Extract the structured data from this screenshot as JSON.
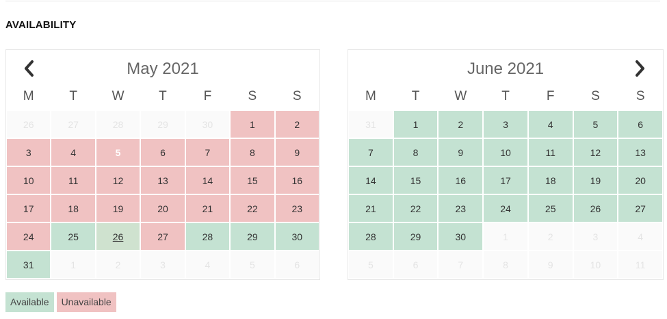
{
  "section": {
    "title": "AVAILABILITY"
  },
  "weekdays": [
    "M",
    "T",
    "W",
    "T",
    "F",
    "S",
    "S"
  ],
  "colors": {
    "available": "#c4e2d2",
    "unavailable": "#f0c2c2",
    "empty": "#fafafa"
  },
  "icons": {
    "prev": "chevron-left-icon",
    "next": "chevron-right-icon"
  },
  "calendars": [
    {
      "title": "May 2021",
      "days": [
        {
          "n": "26",
          "s": "empty"
        },
        {
          "n": "27",
          "s": "empty"
        },
        {
          "n": "28",
          "s": "empty"
        },
        {
          "n": "29",
          "s": "empty"
        },
        {
          "n": "30",
          "s": "empty"
        },
        {
          "n": "1",
          "s": "unavailable"
        },
        {
          "n": "2",
          "s": "unavailable"
        },
        {
          "n": "3",
          "s": "unavailable"
        },
        {
          "n": "4",
          "s": "unavailable"
        },
        {
          "n": "5",
          "s": "unavailable today"
        },
        {
          "n": "6",
          "s": "unavailable"
        },
        {
          "n": "7",
          "s": "unavailable"
        },
        {
          "n": "8",
          "s": "unavailable"
        },
        {
          "n": "9",
          "s": "unavailable"
        },
        {
          "n": "10",
          "s": "unavailable"
        },
        {
          "n": "11",
          "s": "unavailable"
        },
        {
          "n": "12",
          "s": "unavailable"
        },
        {
          "n": "13",
          "s": "unavailable"
        },
        {
          "n": "14",
          "s": "unavailable"
        },
        {
          "n": "15",
          "s": "unavailable"
        },
        {
          "n": "16",
          "s": "unavailable"
        },
        {
          "n": "17",
          "s": "unavailable"
        },
        {
          "n": "18",
          "s": "unavailable"
        },
        {
          "n": "19",
          "s": "unavailable"
        },
        {
          "n": "20",
          "s": "unavailable"
        },
        {
          "n": "21",
          "s": "unavailable"
        },
        {
          "n": "22",
          "s": "unavailable"
        },
        {
          "n": "23",
          "s": "unavailable"
        },
        {
          "n": "24",
          "s": "unavailable"
        },
        {
          "n": "25",
          "s": "available"
        },
        {
          "n": "26",
          "s": "available hover"
        },
        {
          "n": "27",
          "s": "unavailable"
        },
        {
          "n": "28",
          "s": "available"
        },
        {
          "n": "29",
          "s": "available"
        },
        {
          "n": "30",
          "s": "available"
        },
        {
          "n": "31",
          "s": "available"
        },
        {
          "n": "1",
          "s": "empty"
        },
        {
          "n": "2",
          "s": "empty"
        },
        {
          "n": "3",
          "s": "empty"
        },
        {
          "n": "4",
          "s": "empty"
        },
        {
          "n": "5",
          "s": "empty"
        },
        {
          "n": "6",
          "s": "empty"
        }
      ]
    },
    {
      "title": "June 2021",
      "days": [
        {
          "n": "31",
          "s": "empty"
        },
        {
          "n": "1",
          "s": "available"
        },
        {
          "n": "2",
          "s": "available"
        },
        {
          "n": "3",
          "s": "available"
        },
        {
          "n": "4",
          "s": "available"
        },
        {
          "n": "5",
          "s": "available"
        },
        {
          "n": "6",
          "s": "available"
        },
        {
          "n": "7",
          "s": "available"
        },
        {
          "n": "8",
          "s": "available"
        },
        {
          "n": "9",
          "s": "available"
        },
        {
          "n": "10",
          "s": "available"
        },
        {
          "n": "11",
          "s": "available"
        },
        {
          "n": "12",
          "s": "available"
        },
        {
          "n": "13",
          "s": "available"
        },
        {
          "n": "14",
          "s": "available"
        },
        {
          "n": "15",
          "s": "available"
        },
        {
          "n": "16",
          "s": "available"
        },
        {
          "n": "17",
          "s": "available"
        },
        {
          "n": "18",
          "s": "available"
        },
        {
          "n": "19",
          "s": "available"
        },
        {
          "n": "20",
          "s": "available"
        },
        {
          "n": "21",
          "s": "available"
        },
        {
          "n": "22",
          "s": "available"
        },
        {
          "n": "23",
          "s": "available"
        },
        {
          "n": "24",
          "s": "available"
        },
        {
          "n": "25",
          "s": "available"
        },
        {
          "n": "26",
          "s": "available"
        },
        {
          "n": "27",
          "s": "available"
        },
        {
          "n": "28",
          "s": "available"
        },
        {
          "n": "29",
          "s": "available"
        },
        {
          "n": "30",
          "s": "available"
        },
        {
          "n": "1",
          "s": "empty"
        },
        {
          "n": "2",
          "s": "empty"
        },
        {
          "n": "3",
          "s": "empty"
        },
        {
          "n": "4",
          "s": "empty"
        },
        {
          "n": "5",
          "s": "empty"
        },
        {
          "n": "6",
          "s": "empty"
        },
        {
          "n": "7",
          "s": "empty"
        },
        {
          "n": "8",
          "s": "empty"
        },
        {
          "n": "9",
          "s": "empty"
        },
        {
          "n": "10",
          "s": "empty"
        },
        {
          "n": "11",
          "s": "empty"
        }
      ]
    }
  ],
  "legend": {
    "available": "Available",
    "unavailable": "Unavailable"
  }
}
